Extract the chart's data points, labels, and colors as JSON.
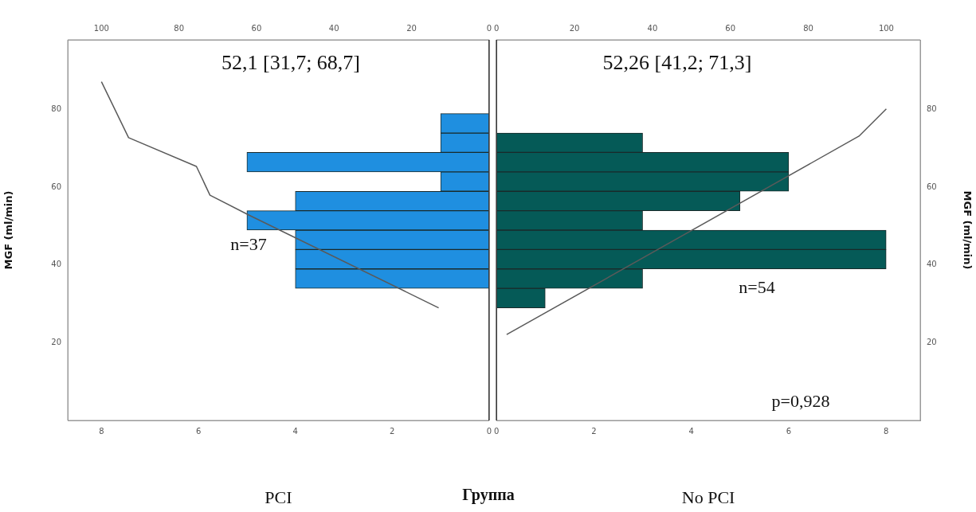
{
  "chart_data": [
    {
      "type": "histogram",
      "orientation": "horizontal",
      "xlabel": "PCI",
      "ylabel": "MGF (ml/min)",
      "bins": [
        29,
        34,
        39,
        44,
        49,
        54,
        59,
        64,
        69,
        74,
        79
      ],
      "series": [
        {
          "color": "#1f8fe0",
          "values": [
            0,
            4,
            4,
            4,
            5,
            4,
            1,
            5,
            1,
            1
          ]
        },
        {
          "type": "line",
          "axis": "x2",
          "color": "#5a5a5a",
          "x": [
            29,
            52.9,
            58,
            65.4,
            72.8,
            87.2
          ],
          "values": [
            13,
            62,
            72,
            75.5,
            93,
            100
          ]
        }
      ],
      "xlim": [
        8.7,
        0
      ],
      "xticks": [
        8,
        6,
        4,
        2,
        0
      ],
      "x2lim": [
        108.7,
        0
      ],
      "x2ticks": [
        100,
        80,
        60,
        40,
        20,
        0
      ],
      "ylim": [
        0,
        98
      ],
      "yticks": [
        20,
        40,
        60,
        80
      ],
      "grid": false,
      "legend": false,
      "marker": "none",
      "line_style": "solid",
      "annotations": [
        "52,1 [31,7; 68,7]",
        "n=37"
      ]
    },
    {
      "type": "histogram",
      "orientation": "horizontal",
      "xlabel": "No PCI",
      "ylabel": "MGF (ml/min)",
      "bins": [
        29,
        34,
        39,
        44,
        49,
        54,
        59,
        64,
        69,
        74,
        79
      ],
      "series": [
        {
          "color": "#055a57",
          "values": [
            1,
            3,
            8,
            8,
            3,
            5,
            6,
            6,
            3,
            0
          ]
        },
        {
          "type": "line",
          "axis": "x2",
          "color": "#5a5a5a",
          "x": [
            22.1,
            73.2,
            80.2
          ],
          "values": [
            2.6,
            93,
            100
          ]
        }
      ],
      "xlim": [
        0,
        8.7
      ],
      "xticks": [
        0,
        2,
        4,
        6,
        8
      ],
      "x2lim": [
        0,
        108.7
      ],
      "x2ticks": [
        0,
        20,
        40,
        60,
        80,
        100
      ],
      "ylim": [
        0,
        98
      ],
      "yticks": [
        20,
        40,
        60,
        80
      ],
      "grid": false,
      "legend": false,
      "marker": "none",
      "line_style": "solid",
      "annotations": [
        "52,26 [41,2; 71,3]",
        "n=54",
        "p=0,928",
        "Группа"
      ]
    }
  ]
}
